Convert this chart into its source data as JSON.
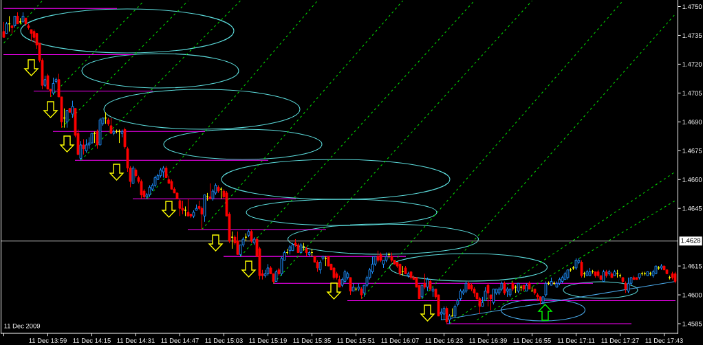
{
  "chart_data": {
    "type": "candlestick",
    "x": [
      "2009-12-11T13:43",
      "2009-12-11T13:44",
      "2009-12-11T13:45",
      "2009-12-11T13:46",
      "2009-12-11T13:47",
      "2009-12-11T13:48",
      "2009-12-11T13:49",
      "2009-12-11T13:50",
      "2009-12-11T13:51",
      "2009-12-11T13:52",
      "2009-12-11T13:53",
      "2009-12-11T13:54",
      "2009-12-11T13:55",
      "2009-12-11T13:56",
      "2009-12-11T13:57",
      "2009-12-11T13:58",
      "2009-12-11T13:59",
      "2009-12-11T14:00",
      "2009-12-11T14:01",
      "2009-12-11T14:02",
      "2009-12-11T14:03",
      "2009-12-11T14:04",
      "2009-12-11T14:05",
      "2009-12-11T14:06",
      "2009-12-11T14:07",
      "2009-12-11T14:08",
      "2009-12-11T14:09",
      "2009-12-11T14:10",
      "2009-12-11T14:11",
      "2009-12-11T14:12",
      "2009-12-11T14:13",
      "2009-12-11T14:14",
      "2009-12-11T14:15",
      "2009-12-11T14:16",
      "2009-12-11T14:17",
      "2009-12-11T14:18",
      "2009-12-11T14:19",
      "2009-12-11T14:20",
      "2009-12-11T14:21",
      "2009-12-11T14:22",
      "2009-12-11T14:23",
      "2009-12-11T14:24",
      "2009-12-11T14:25",
      "2009-12-11T14:26",
      "2009-12-11T14:27",
      "2009-12-11T14:28",
      "2009-12-11T14:29",
      "2009-12-11T14:30",
      "2009-12-11T14:31",
      "2009-12-11T14:32",
      "2009-12-11T14:33",
      "2009-12-11T14:34",
      "2009-12-11T14:35",
      "2009-12-11T14:36",
      "2009-12-11T14:37",
      "2009-12-11T14:38",
      "2009-12-11T14:39",
      "2009-12-11T14:40",
      "2009-12-11T14:41",
      "2009-12-11T14:42",
      "2009-12-11T14:43",
      "2009-12-11T14:44",
      "2009-12-11T14:45",
      "2009-12-11T14:46",
      "2009-12-11T14:47",
      "2009-12-11T14:48",
      "2009-12-11T14:49",
      "2009-12-11T14:50",
      "2009-12-11T14:51",
      "2009-12-11T14:52",
      "2009-12-11T14:53",
      "2009-12-11T14:54",
      "2009-12-11T14:55",
      "2009-12-11T14:56",
      "2009-12-11T14:57",
      "2009-12-11T14:58",
      "2009-12-11T14:59",
      "2009-12-11T15:00",
      "2009-12-11T15:01",
      "2009-12-11T15:02",
      "2009-12-11T15:03",
      "2009-12-11T15:04",
      "2009-12-11T15:05",
      "2009-12-11T15:06",
      "2009-12-11T15:07",
      "2009-12-11T15:08",
      "2009-12-11T15:09",
      "2009-12-11T15:10",
      "2009-12-11T15:11",
      "2009-12-11T15:12",
      "2009-12-11T15:13",
      "2009-12-11T15:14",
      "2009-12-11T15:15",
      "2009-12-11T15:16",
      "2009-12-11T15:17",
      "2009-12-11T15:18",
      "2009-12-11T15:19",
      "2009-12-11T15:20",
      "2009-12-11T15:21",
      "2009-12-11T15:22",
      "2009-12-11T15:23",
      "2009-12-11T15:24",
      "2009-12-11T15:25",
      "2009-12-11T15:26",
      "2009-12-11T15:27",
      "2009-12-11T15:28",
      "2009-12-11T15:29",
      "2009-12-11T15:30",
      "2009-12-11T15:31",
      "2009-12-11T15:32",
      "2009-12-11T15:33",
      "2009-12-11T15:34",
      "2009-12-11T15:35",
      "2009-12-11T15:36",
      "2009-12-11T15:37",
      "2009-12-11T15:38",
      "2009-12-11T15:39",
      "2009-12-11T15:40",
      "2009-12-11T15:41",
      "2009-12-11T15:42",
      "2009-12-11T15:43",
      "2009-12-11T15:44",
      "2009-12-11T15:45",
      "2009-12-11T15:46",
      "2009-12-11T15:47",
      "2009-12-11T15:48",
      "2009-12-11T15:49",
      "2009-12-11T15:50",
      "2009-12-11T15:51",
      "2009-12-11T15:52",
      "2009-12-11T15:53",
      "2009-12-11T15:54",
      "2009-12-11T15:55",
      "2009-12-11T15:56",
      "2009-12-11T15:57",
      "2009-12-11T15:58",
      "2009-12-11T15:59",
      "2009-12-11T16:00",
      "2009-12-11T16:01",
      "2009-12-11T16:02",
      "2009-12-11T16:03",
      "2009-12-11T16:04",
      "2009-12-11T16:05",
      "2009-12-11T16:06",
      "2009-12-11T16:07",
      "2009-12-11T16:08",
      "2009-12-11T16:09",
      "2009-12-11T16:10",
      "2009-12-11T16:11",
      "2009-12-11T16:12",
      "2009-12-11T16:13",
      "2009-12-11T16:14",
      "2009-12-11T16:15",
      "2009-12-11T16:16",
      "2009-12-11T16:17",
      "2009-12-11T16:18",
      "2009-12-11T16:19",
      "2009-12-11T16:20",
      "2009-12-11T16:21",
      "2009-12-11T16:22",
      "2009-12-11T16:23",
      "2009-12-11T16:24",
      "2009-12-11T16:25",
      "2009-12-11T16:26",
      "2009-12-11T16:27",
      "2009-12-11T16:28",
      "2009-12-11T16:29",
      "2009-12-11T16:30",
      "2009-12-11T16:31",
      "2009-12-11T16:32",
      "2009-12-11T16:33",
      "2009-12-11T16:34",
      "2009-12-11T16:35",
      "2009-12-11T16:36",
      "2009-12-11T16:37",
      "2009-12-11T16:38",
      "2009-12-11T16:39",
      "2009-12-11T16:40",
      "2009-12-11T16:41",
      "2009-12-11T16:42",
      "2009-12-11T16:43",
      "2009-12-11T16:44",
      "2009-12-11T16:45",
      "2009-12-11T16:46",
      "2009-12-11T16:47",
      "2009-12-11T16:48",
      "2009-12-11T16:49",
      "2009-12-11T16:50",
      "2009-12-11T16:51",
      "2009-12-11T16:52",
      "2009-12-11T16:53",
      "2009-12-11T16:54",
      "2009-12-11T16:55",
      "2009-12-11T16:56",
      "2009-12-11T16:57",
      "2009-12-11T16:58",
      "2009-12-11T16:59",
      "2009-12-11T17:00",
      "2009-12-11T17:01",
      "2009-12-11T17:02",
      "2009-12-11T17:03",
      "2009-12-11T17:04",
      "2009-12-11T17:05",
      "2009-12-11T17:06",
      "2009-12-11T17:07",
      "2009-12-11T17:08",
      "2009-12-11T17:09",
      "2009-12-11T17:10",
      "2009-12-11T17:11",
      "2009-12-11T17:12",
      "2009-12-11T17:13",
      "2009-12-11T17:14",
      "2009-12-11T17:15",
      "2009-12-11T17:16",
      "2009-12-11T17:17",
      "2009-12-11T17:18",
      "2009-12-11T17:19",
      "2009-12-11T17:20",
      "2009-12-11T17:21",
      "2009-12-11T17:22",
      "2009-12-11T17:23",
      "2009-12-11T17:24",
      "2009-12-11T17:25",
      "2009-12-11T17:26",
      "2009-12-11T17:27",
      "2009-12-11T17:28",
      "2009-12-11T17:29",
      "2009-12-11T17:30",
      "2009-12-11T17:31",
      "2009-12-11T17:32",
      "2009-12-11T17:33",
      "2009-12-11T17:34",
      "2009-12-11T17:35",
      "2009-12-11T17:36",
      "2009-12-11T17:37",
      "2009-12-11T17:38",
      "2009-12-11T17:39",
      "2009-12-11T17:40",
      "2009-12-11T17:41",
      "2009-12-11T17:42",
      "2009-12-11T17:43",
      "2009-12-11T17:44",
      "2009-12-11T17:45",
      "2009-12-11T17:46",
      "2009-12-11T17:47"
    ],
    "ohlc": [
      [
        1.4737,
        1.4742,
        1.4734,
        1.4734
      ],
      [
        1.4736,
        1.4742,
        1.4736,
        1.4741
      ],
      [
        1.4741,
        1.4745,
        1.4737,
        1.4741
      ],
      [
        1.474,
        1.474,
        1.4736,
        1.4739
      ],
      [
        1.474,
        1.4745,
        1.4739,
        1.4745
      ],
      [
        1.4745,
        1.4747,
        1.4741,
        1.4741
      ],
      [
        1.4742,
        1.4744,
        1.4741,
        1.4742
      ],
      [
        1.4742,
        1.4747,
        1.4742,
        1.4745
      ],
      [
        1.4744,
        1.4744,
        1.474,
        1.4741
      ],
      [
        1.474,
        1.4741,
        1.4738,
        1.4739
      ],
      [
        1.4738,
        1.4738,
        1.4732,
        1.4736
      ],
      [
        1.4737,
        1.4738,
        1.4731,
        1.4734
      ],
      [
        1.4736,
        1.4736,
        1.4728,
        1.473
      ],
      [
        1.4731,
        1.4731,
        1.4721,
        1.4722
      ],
      [
        1.4722,
        1.4723,
        1.4707,
        1.4709
      ],
      [
        1.4709,
        1.4714,
        1.4708,
        1.4712
      ],
      [
        1.4714,
        1.4715,
        1.4707,
        1.4707
      ],
      [
        1.4707,
        1.4707,
        1.4703,
        1.4706
      ],
      [
        1.4705,
        1.4713,
        1.4704,
        1.471
      ],
      [
        1.4711,
        1.4713,
        1.471,
        1.4712
      ],
      [
        1.4712,
        1.4715,
        1.4703,
        1.4703
      ],
      [
        1.4703,
        1.4703,
        1.4687,
        1.469
      ],
      [
        1.4692,
        1.4697,
        1.4687,
        1.4692
      ],
      [
        1.469,
        1.4696,
        1.4687,
        1.4696
      ],
      [
        1.4697,
        1.4697,
        1.4695,
        1.4695
      ],
      [
        1.4694,
        1.4701,
        1.4692,
        1.4698
      ],
      [
        1.4697,
        1.4697,
        1.4682,
        1.4683
      ],
      [
        1.4684,
        1.4686,
        1.4673,
        1.4673
      ],
      [
        1.4671,
        1.468,
        1.467,
        1.4678
      ],
      [
        1.4678,
        1.4681,
        1.4673,
        1.4676
      ],
      [
        1.4675,
        1.4681,
        1.4674,
        1.4678
      ],
      [
        1.4678,
        1.4682,
        1.4676,
        1.4679
      ],
      [
        1.4679,
        1.4684,
        1.4679,
        1.4684
      ],
      [
        1.4684,
        1.4685,
        1.4679,
        1.4684
      ],
      [
        1.4685,
        1.4686,
        1.4676,
        1.4678
      ],
      [
        1.4678,
        1.4692,
        1.4678,
        1.4691
      ],
      [
        1.4689,
        1.4692,
        1.4688,
        1.4692
      ],
      [
        1.4692,
        1.4695,
        1.4689,
        1.4692
      ],
      [
        1.4691,
        1.4692,
        1.4688,
        1.4689
      ],
      [
        1.4688,
        1.4692,
        1.4684,
        1.4684
      ],
      [
        1.4684,
        1.4686,
        1.4683,
        1.4685
      ],
      [
        1.4685,
        1.4686,
        1.4684,
        1.4685
      ],
      [
        1.4685,
        1.4686,
        1.4679,
        1.4685
      ],
      [
        1.4684,
        1.4686,
        1.4682,
        1.4685
      ],
      [
        1.4686,
        1.4687,
        1.4676,
        1.4677
      ],
      [
        1.4676,
        1.4677,
        1.4664,
        1.4666
      ],
      [
        1.4666,
        1.4667,
        1.4656,
        1.4659
      ],
      [
        1.4658,
        1.4667,
        1.4658,
        1.4666
      ],
      [
        1.4665,
        1.4666,
        1.4661,
        1.4662
      ],
      [
        1.4661,
        1.4662,
        1.4658,
        1.4659
      ],
      [
        1.4659,
        1.466,
        1.465,
        1.4652
      ],
      [
        1.4654,
        1.4655,
        1.465,
        1.4651
      ],
      [
        1.4651,
        1.4653,
        1.465,
        1.4652
      ],
      [
        1.4652,
        1.4657,
        1.4651,
        1.4656
      ],
      [
        1.4655,
        1.4658,
        1.4654,
        1.4657
      ],
      [
        1.4657,
        1.4662,
        1.4656,
        1.4661
      ],
      [
        1.466,
        1.4663,
        1.466,
        1.4662
      ],
      [
        1.4662,
        1.4666,
        1.4661,
        1.4665
      ],
      [
        1.4664,
        1.4667,
        1.4661,
        1.4666
      ],
      [
        1.4666,
        1.4667,
        1.4661,
        1.4661
      ],
      [
        1.466,
        1.4662,
        1.4658,
        1.4658
      ],
      [
        1.4659,
        1.466,
        1.4655,
        1.4655
      ],
      [
        1.4655,
        1.4656,
        1.4653,
        1.4653
      ],
      [
        1.4653,
        1.4653,
        1.465,
        1.465
      ],
      [
        1.4649,
        1.465,
        1.4641,
        1.4645
      ],
      [
        1.4645,
        1.4649,
        1.4642,
        1.4644
      ],
      [
        1.4644,
        1.4646,
        1.4641,
        1.4644
      ],
      [
        1.4643,
        1.465,
        1.4641,
        1.4641
      ],
      [
        1.4642,
        1.4642,
        1.464,
        1.4641
      ],
      [
        1.4641,
        1.4644,
        1.464,
        1.4643
      ],
      [
        1.4644,
        1.4647,
        1.4644,
        1.4645
      ],
      [
        1.4646,
        1.4649,
        1.4644,
        1.4645
      ],
      [
        1.4645,
        1.4646,
        1.4634,
        1.4642
      ],
      [
        1.4641,
        1.4652,
        1.4638,
        1.4652
      ],
      [
        1.4651,
        1.4653,
        1.4649,
        1.4651
      ],
      [
        1.4651,
        1.4658,
        1.465,
        1.465
      ],
      [
        1.465,
        1.4655,
        1.4649,
        1.4654
      ],
      [
        1.4653,
        1.4658,
        1.4652,
        1.4657
      ],
      [
        1.4656,
        1.4657,
        1.4653,
        1.4654
      ],
      [
        1.4655,
        1.4656,
        1.465,
        1.4655
      ],
      [
        1.4654,
        1.4655,
        1.465,
        1.4651
      ],
      [
        1.4653,
        1.4654,
        1.4641,
        1.4641
      ],
      [
        1.4642,
        1.4643,
        1.4627,
        1.4628
      ],
      [
        1.463,
        1.4633,
        1.4624,
        1.463
      ],
      [
        1.463,
        1.4631,
        1.4626,
        1.4627
      ],
      [
        1.4628,
        1.4633,
        1.4621,
        1.4621
      ],
      [
        1.4621,
        1.4626,
        1.462,
        1.4626
      ],
      [
        1.4626,
        1.463,
        1.4625,
        1.4629
      ],
      [
        1.463,
        1.4632,
        1.4628,
        1.463
      ],
      [
        1.4631,
        1.4634,
        1.463,
        1.4633
      ],
      [
        1.4633,
        1.4634,
        1.4627,
        1.4628
      ],
      [
        1.4627,
        1.463,
        1.4626,
        1.4629
      ],
      [
        1.4629,
        1.463,
        1.462,
        1.462
      ],
      [
        1.4624,
        1.4625,
        1.4608,
        1.461
      ],
      [
        1.4611,
        1.4613,
        1.4608,
        1.461
      ],
      [
        1.461,
        1.4613,
        1.4609,
        1.4611
      ],
      [
        1.4611,
        1.4616,
        1.461,
        1.4614
      ],
      [
        1.4614,
        1.4615,
        1.4611,
        1.4611
      ],
      [
        1.4611,
        1.4611,
        1.4606,
        1.4607
      ],
      [
        1.4607,
        1.4613,
        1.4607,
        1.4612
      ],
      [
        1.4613,
        1.4614,
        1.461,
        1.4611
      ],
      [
        1.4611,
        1.462,
        1.461,
        1.4619
      ],
      [
        1.4618,
        1.4623,
        1.4618,
        1.4622
      ],
      [
        1.4622,
        1.4624,
        1.4621,
        1.4622
      ],
      [
        1.4623,
        1.4626,
        1.4621,
        1.4625
      ],
      [
        1.4623,
        1.4627,
        1.4623,
        1.4626
      ],
      [
        1.4627,
        1.4629,
        1.4625,
        1.4626
      ],
      [
        1.4626,
        1.4627,
        1.4622,
        1.4622
      ],
      [
        1.4622,
        1.4627,
        1.4622,
        1.4626
      ],
      [
        1.4625,
        1.4627,
        1.4623,
        1.4625
      ],
      [
        1.4624,
        1.4625,
        1.462,
        1.4622
      ],
      [
        1.4621,
        1.4623,
        1.462,
        1.4622
      ],
      [
        1.4622,
        1.4624,
        1.462,
        1.4622
      ],
      [
        1.462,
        1.462,
        1.4617,
        1.4617
      ],
      [
        1.4617,
        1.4618,
        1.4612,
        1.4614
      ],
      [
        1.4613,
        1.4618,
        1.4611,
        1.4617
      ],
      [
        1.4619,
        1.462,
        1.4618,
        1.462
      ],
      [
        1.4619,
        1.462,
        1.4615,
        1.4619
      ],
      [
        1.462,
        1.462,
        1.4615,
        1.4615
      ],
      [
        1.4616,
        1.4616,
        1.4613,
        1.4613
      ],
      [
        1.4614,
        1.4614,
        1.4608,
        1.4609
      ],
      [
        1.4611,
        1.4612,
        1.4608,
        1.4609
      ],
      [
        1.4608,
        1.461,
        1.4604,
        1.4604
      ],
      [
        1.4605,
        1.4609,
        1.4604,
        1.4608
      ],
      [
        1.4607,
        1.4613,
        1.4606,
        1.4612
      ],
      [
        1.4609,
        1.4612,
        1.4608,
        1.4611
      ],
      [
        1.4609,
        1.4609,
        1.46,
        1.4602
      ],
      [
        1.4602,
        1.4606,
        1.4602,
        1.4604
      ],
      [
        1.4603,
        1.4604,
        1.4602,
        1.4603
      ],
      [
        1.4603,
        1.4606,
        1.4602,
        1.4604
      ],
      [
        1.4603,
        1.4604,
        1.4598,
        1.46
      ],
      [
        1.4601,
        1.4605,
        1.4599,
        1.4605
      ],
      [
        1.4605,
        1.461,
        1.4604,
        1.4609
      ],
      [
        1.4609,
        1.4614,
        1.4608,
        1.4613
      ],
      [
        1.4612,
        1.462,
        1.4611,
        1.4616
      ],
      [
        1.4616,
        1.462,
        1.4615,
        1.462
      ],
      [
        1.462,
        1.4623,
        1.4617,
        1.4618
      ],
      [
        1.4621,
        1.4622,
        1.4617,
        1.4618
      ],
      [
        1.4616,
        1.4618,
        1.4614,
        1.4618
      ],
      [
        1.4618,
        1.4622,
        1.4617,
        1.462
      ],
      [
        1.4621,
        1.4622,
        1.4619,
        1.4621
      ],
      [
        1.462,
        1.4622,
        1.4617,
        1.4618
      ],
      [
        1.4618,
        1.4618,
        1.4616,
        1.4616
      ],
      [
        1.4617,
        1.4617,
        1.4614,
        1.4615
      ],
      [
        1.4616,
        1.4616,
        1.461,
        1.4611
      ],
      [
        1.4612,
        1.4615,
        1.461,
        1.4612
      ],
      [
        1.4614,
        1.4615,
        1.4611,
        1.4611
      ],
      [
        1.461,
        1.4612,
        1.4609,
        1.4611
      ],
      [
        1.4612,
        1.4612,
        1.4608,
        1.4609
      ],
      [
        1.4609,
        1.461,
        1.4608,
        1.4608
      ],
      [
        1.4609,
        1.4609,
        1.4604,
        1.4604
      ],
      [
        1.4605,
        1.4605,
        1.4598,
        1.4598
      ],
      [
        1.4599,
        1.4605,
        1.4598,
        1.4605
      ],
      [
        1.4606,
        1.4611,
        1.4603,
        1.4604
      ],
      [
        1.4604,
        1.4609,
        1.4602,
        1.4608
      ],
      [
        1.4607,
        1.4608,
        1.4602,
        1.4603
      ],
      [
        1.4602,
        1.4604,
        1.4599,
        1.4603
      ],
      [
        1.4603,
        1.4603,
        1.4598,
        1.4599
      ],
      [
        1.46,
        1.46,
        1.4589,
        1.4589
      ],
      [
        1.459,
        1.4593,
        1.4587,
        1.4591
      ],
      [
        1.459,
        1.4594,
        1.4587,
        1.4593
      ],
      [
        1.4593,
        1.4594,
        1.4585,
        1.4586
      ],
      [
        1.4587,
        1.459,
        1.4585,
        1.4589
      ],
      [
        1.4589,
        1.4593,
        1.4589,
        1.4589
      ],
      [
        1.4589,
        1.4595,
        1.4588,
        1.4594
      ],
      [
        1.4595,
        1.4598,
        1.4594,
        1.4597
      ],
      [
        1.4598,
        1.4603,
        1.4597,
        1.4602
      ],
      [
        1.4601,
        1.4603,
        1.46,
        1.4602
      ],
      [
        1.4602,
        1.4607,
        1.4601,
        1.4606
      ],
      [
        1.4606,
        1.4607,
        1.4603,
        1.4603
      ],
      [
        1.4605,
        1.4606,
        1.4602,
        1.4603
      ],
      [
        1.4603,
        1.4604,
        1.4599,
        1.4601
      ],
      [
        1.4601,
        1.4601,
        1.4597,
        1.4598
      ],
      [
        1.4598,
        1.4599,
        1.459,
        1.4594
      ],
      [
        1.4594,
        1.4599,
        1.4594,
        1.4596
      ],
      [
        1.4597,
        1.4604,
        1.4597,
        1.4602
      ],
      [
        1.4605,
        1.4606,
        1.4594,
        1.4601
      ],
      [
        1.46,
        1.46,
        1.4592,
        1.4598
      ],
      [
        1.4596,
        1.4603,
        1.4595,
        1.4603
      ],
      [
        1.4601,
        1.4603,
        1.46,
        1.4603
      ],
      [
        1.4601,
        1.4604,
        1.46,
        1.4603
      ],
      [
        1.4603,
        1.4607,
        1.4602,
        1.4606
      ],
      [
        1.4606,
        1.4607,
        1.46,
        1.4601
      ],
      [
        1.4602,
        1.4604,
        1.4599,
        1.4603
      ],
      [
        1.46,
        1.4603,
        1.4599,
        1.4603
      ],
      [
        1.4606,
        1.4607,
        1.4602,
        1.4603
      ],
      [
        1.4604,
        1.4605,
        1.4601,
        1.4604
      ],
      [
        1.4602,
        1.4606,
        1.4601,
        1.4606
      ],
      [
        1.4604,
        1.4605,
        1.4602,
        1.4604
      ],
      [
        1.4605,
        1.4605,
        1.4602,
        1.4603
      ],
      [
        1.4602,
        1.4606,
        1.4602,
        1.4605
      ],
      [
        1.4606,
        1.4607,
        1.4603,
        1.4603
      ],
      [
        1.4602,
        1.4604,
        1.4602,
        1.4602
      ],
      [
        1.4603,
        1.4603,
        1.46,
        1.4601
      ],
      [
        1.46,
        1.4601,
        1.4597,
        1.4599
      ],
      [
        1.4599,
        1.4599,
        1.4595,
        1.4597
      ],
      [
        1.4596,
        1.4599,
        1.4595,
        1.4599
      ],
      [
        1.46,
        1.4607,
        1.4599,
        1.4606
      ],
      [
        1.4606,
        1.4607,
        1.4605,
        1.4606
      ],
      [
        1.4605,
        1.4609,
        1.4605,
        1.4607
      ],
      [
        1.4606,
        1.4607,
        1.4605,
        1.4606
      ],
      [
        1.4604,
        1.4607,
        1.4604,
        1.4606
      ],
      [
        1.4606,
        1.4609,
        1.4605,
        1.4608
      ],
      [
        1.4607,
        1.461,
        1.4606,
        1.4609
      ],
      [
        1.4608,
        1.4612,
        1.4608,
        1.4611
      ],
      [
        1.4609,
        1.4613,
        1.4608,
        1.4613
      ],
      [
        1.4613,
        1.4614,
        1.4612,
        1.4613
      ],
      [
        1.4614,
        1.4615,
        1.4613,
        1.4614
      ],
      [
        1.4614,
        1.4619,
        1.4613,
        1.4618
      ],
      [
        1.4617,
        1.4619,
        1.4616,
        1.4618
      ],
      [
        1.4617,
        1.4618,
        1.4609,
        1.461
      ],
      [
        1.4611,
        1.4612,
        1.4609,
        1.4611
      ],
      [
        1.461,
        1.4613,
        1.461,
        1.4612
      ],
      [
        1.461,
        1.4614,
        1.461,
        1.4612
      ],
      [
        1.4612,
        1.4613,
        1.4611,
        1.4612
      ],
      [
        1.4612,
        1.4612,
        1.4609,
        1.461
      ],
      [
        1.4612,
        1.4613,
        1.4609,
        1.461
      ],
      [
        1.461,
        1.461,
        1.4608,
        1.4608
      ],
      [
        1.4607,
        1.4613,
        1.4607,
        1.4612
      ],
      [
        1.4612,
        1.4613,
        1.4609,
        1.461
      ],
      [
        1.4611,
        1.4613,
        1.461,
        1.4612
      ],
      [
        1.4611,
        1.4612,
        1.4609,
        1.4609
      ],
      [
        1.461,
        1.4613,
        1.461,
        1.4612
      ],
      [
        1.4611,
        1.4613,
        1.4609,
        1.4611
      ],
      [
        1.461,
        1.4611,
        1.4609,
        1.461
      ],
      [
        1.4609,
        1.4609,
        1.4606,
        1.4607
      ],
      [
        1.4606,
        1.4607,
        1.4601,
        1.4603
      ],
      [
        1.4602,
        1.4609,
        1.4601,
        1.4606
      ],
      [
        1.4606,
        1.4609,
        1.4605,
        1.4609
      ],
      [
        1.4609,
        1.461,
        1.4608,
        1.4608
      ],
      [
        1.4609,
        1.4609,
        1.4608,
        1.4608
      ],
      [
        1.4609,
        1.4611,
        1.4608,
        1.4611
      ],
      [
        1.4611,
        1.4612,
        1.461,
        1.4611
      ],
      [
        1.4611,
        1.4612,
        1.461,
        1.4611
      ],
      [
        1.461,
        1.4612,
        1.461,
        1.4612
      ],
      [
        1.4611,
        1.4612,
        1.461,
        1.4611
      ],
      [
        1.461,
        1.4613,
        1.4609,
        1.4612
      ],
      [
        1.4611,
        1.4615,
        1.4611,
        1.4615
      ],
      [
        1.4614,
        1.4615,
        1.4613,
        1.4614
      ],
      [
        1.4614,
        1.4616,
        1.4613,
        1.4615
      ],
      [
        1.4615,
        1.4615,
        1.4613,
        1.4613
      ],
      [
        1.4613,
        1.4613,
        1.4611,
        1.4611
      ],
      [
        1.4609,
        1.461,
        1.4608,
        1.4609
      ],
      [
        1.4611,
        1.4612,
        1.4608,
        1.4609
      ],
      [
        1.4611,
        1.4612,
        1.4606,
        1.4607
      ]
    ],
    "colors": [
      "#ff0000",
      "#1e90ff",
      "#ffff00",
      "#ff0000",
      "#1e90ff",
      "#ff0000",
      "#ffff00",
      "#1e90ff",
      "#ff0000",
      "#ff0000",
      "#ff0000",
      "#ff0000",
      "#ff0000",
      "#ff0000",
      "#ff0000",
      "#1e90ff",
      "#ff0000",
      "#ff0000",
      "#1e90ff",
      "#1e90ff",
      "#ff0000",
      "#ff0000",
      "#ffff00",
      "#1e90ff",
      "#ff0000",
      "#1e90ff",
      "#ff0000",
      "#ff0000",
      "#1e90ff",
      "#ff0000",
      "#1e90ff",
      "#1e90ff",
      "#1e90ff",
      "#ffff00",
      "#ff0000",
      "#1e90ff",
      "#1e90ff",
      "#ffff00",
      "#ff0000",
      "#ff0000",
      "#1e90ff",
      "#ffff00",
      "#ffff00",
      "#1e90ff",
      "#ff0000",
      "#ff0000",
      "#ff0000",
      "#1e90ff",
      "#ff0000",
      "#ff0000",
      "#ff0000",
      "#ff0000",
      "#1e90ff",
      "#1e90ff",
      "#1e90ff",
      "#1e90ff",
      "#1e90ff",
      "#1e90ff",
      "#1e90ff",
      "#ff0000",
      "#ff0000",
      "#ff0000",
      "#ff0000",
      "#ff0000",
      "#ff0000",
      "#ff0000",
      "#ffff00",
      "#ff0000",
      "#ff0000",
      "#1e90ff",
      "#1e90ff",
      "#ff0000",
      "#ff0000",
      "#1e90ff",
      "#ffff00",
      "#ff0000",
      "#1e90ff",
      "#1e90ff",
      "#ff0000",
      "#ffff00",
      "#ff0000",
      "#ff0000",
      "#ff0000",
      "#ffff00",
      "#ff0000",
      "#ff0000",
      "#1e90ff",
      "#1e90ff",
      "#ffff00",
      "#1e90ff",
      "#ff0000",
      "#1e90ff",
      "#ff0000",
      "#ff0000",
      "#ff0000",
      "#1e90ff",
      "#1e90ff",
      "#ff0000",
      "#ff0000",
      "#1e90ff",
      "#ff0000",
      "#1e90ff",
      "#1e90ff",
      "#ffff00",
      "#1e90ff",
      "#1e90ff",
      "#ff0000",
      "#ff0000",
      "#1e90ff",
      "#ffff00",
      "#ff0000",
      "#1e90ff",
      "#ffff00",
      "#ff0000",
      "#ff0000",
      "#1e90ff",
      "#1e90ff",
      "#ffff00",
      "#ff0000",
      "#ff0000",
      "#ff0000",
      "#ff0000",
      "#ff0000",
      "#1e90ff",
      "#1e90ff",
      "#1e90ff",
      "#ff0000",
      "#1e90ff",
      "#ffff00",
      "#1e90ff",
      "#ff0000",
      "#1e90ff",
      "#1e90ff",
      "#1e90ff",
      "#1e90ff",
      "#1e90ff",
      "#ff0000",
      "#ff0000",
      "#1e90ff",
      "#1e90ff",
      "#ffff00",
      "#ff0000",
      "#ff0000",
      "#ff0000",
      "#ff0000",
      "#ffff00",
      "#ff0000",
      "#1e90ff",
      "#ff0000",
      "#ff0000",
      "#ff0000",
      "#ff0000",
      "#1e90ff",
      "#ff0000",
      "#1e90ff",
      "#ff0000",
      "#1e90ff",
      "#ff0000",
      "#ff0000",
      "#1e90ff",
      "#1e90ff",
      "#ff0000",
      "#1e90ff",
      "#ffff00",
      "#1e90ff",
      "#1e90ff",
      "#1e90ff",
      "#1e90ff",
      "#1e90ff",
      "#ff0000",
      "#ff0000",
      "#ff0000",
      "#ff0000",
      "#ff0000",
      "#1e90ff",
      "#1e90ff",
      "#ff0000",
      "#ff0000",
      "#1e90ff",
      "#1e90ff",
      "#1e90ff",
      "#1e90ff",
      "#ff0000",
      "#1e90ff",
      "#1e90ff",
      "#ff0000",
      "#ffff00",
      "#1e90ff",
      "#ffff00",
      "#ff0000",
      "#1e90ff",
      "#ff0000",
      "#ffff00",
      "#ff0000",
      "#ff0000",
      "#ff0000",
      "#1e90ff",
      "#1e90ff",
      "#ffff00",
      "#1e90ff",
      "#ffff00",
      "#1e90ff",
      "#1e90ff",
      "#1e90ff",
      "#1e90ff",
      "#1e90ff",
      "#ffff00",
      "#ffff00",
      "#1e90ff",
      "#1e90ff",
      "#ff0000",
      "#ffff00",
      "#1e90ff",
      "#1e90ff",
      "#ffff00",
      "#ff0000",
      "#ff0000",
      "#ff0000",
      "#1e90ff",
      "#ff0000",
      "#1e90ff",
      "#ff0000",
      "#1e90ff",
      "#ffff00",
      "#ffff00",
      "#ff0000",
      "#ff0000",
      "#1e90ff",
      "#1e90ff",
      "#ff0000",
      "#ff0000",
      "#1e90ff",
      "#ffff00",
      "#ffff00",
      "#1e90ff",
      "#ffff00",
      "#1e90ff",
      "#1e90ff",
      "#ffff00",
      "#1e90ff",
      "#ff0000",
      "#ff0000",
      "#ffff00",
      "#ff0000",
      "#ff0000"
    ],
    "series": [
      {
        "type": "line",
        "color": "#ff00ff",
        "x": [
          "2009-12-11T13:43",
          "2009-12-11T14:24"
        ],
        "values": [
          1.4749,
          1.4749
        ]
      },
      {
        "type": "line",
        "color": "#ff00ff",
        "x": [
          "2009-12-11T13:43",
          "2009-12-11T14:30"
        ],
        "values": [
          1.4725,
          1.4725
        ]
      },
      {
        "type": "line",
        "color": "#ff00ff",
        "x": [
          "2009-12-11T13:54",
          "2009-12-11T14:37"
        ],
        "values": [
          1.4706,
          1.4706
        ]
      },
      {
        "type": "line",
        "color": "#ff00ff",
        "x": [
          "2009-12-11T14:01",
          "2009-12-11T14:56"
        ],
        "values": [
          1.4685,
          1.4685
        ]
      },
      {
        "type": "line",
        "color": "#ff00ff",
        "x": [
          "2009-12-11T14:09",
          "2009-12-11T15:19"
        ],
        "values": [
          1.467,
          1.467
        ]
      },
      {
        "type": "line",
        "color": "#ff00ff",
        "x": [
          "2009-12-11T14:30",
          "2009-12-11T15:29"
        ],
        "values": [
          1.465,
          1.465
        ]
      },
      {
        "type": "line",
        "color": "#ff00ff",
        "x": [
          "2009-12-11T14:50",
          "2009-12-11T15:40"
        ],
        "values": [
          1.4634,
          1.4634
        ]
      },
      {
        "type": "line",
        "color": "#ff00ff",
        "x": [
          "2009-12-11T15:03",
          "2009-12-11T16:09"
        ],
        "values": [
          1.462,
          1.462
        ]
      },
      {
        "type": "line",
        "color": "#ff00ff",
        "x": [
          "2009-12-11T15:21",
          "2009-12-11T17:17"
        ],
        "values": [
          1.4606,
          1.4606
        ]
      },
      {
        "type": "line",
        "color": "#ff00ff",
        "x": [
          "2009-12-11T15:48",
          "2009-12-11T17:47"
        ],
        "values": [
          1.4597,
          1.4597
        ]
      },
      {
        "type": "line",
        "color": "#ff00ff",
        "x": [
          "2009-12-11T16:24",
          "2009-12-11T17:31"
        ],
        "values": [
          1.4585,
          1.4585
        ]
      },
      {
        "type": "line",
        "color": "#00e000",
        "line_style": "dashed",
        "x": [
          "2009-12-11T13:43",
          "2009-12-11T13:57"
        ],
        "values": [
          1.4731,
          1.4753
        ]
      },
      {
        "type": "line",
        "color": "#00e000",
        "line_style": "dashed",
        "x": [
          "2009-12-11T14:00",
          "2009-12-11T14:34"
        ],
        "values": [
          1.4703,
          1.4753
        ]
      },
      {
        "type": "line",
        "color": "#00e000",
        "line_style": "dashed",
        "x": [
          "2009-12-11T14:04",
          "2009-12-11T14:50"
        ],
        "values": [
          1.4687,
          1.4753
        ]
      },
      {
        "type": "line",
        "color": "#00e000",
        "line_style": "dashed",
        "x": [
          "2009-12-11T14:11",
          "2009-12-11T15:09"
        ],
        "values": [
          1.467,
          1.4753
        ]
      },
      {
        "type": "line",
        "color": "#00e000",
        "line_style": "dashed",
        "x": [
          "2009-12-11T14:35",
          "2009-12-11T15:37"
        ],
        "values": [
          1.465,
          1.4753
        ]
      },
      {
        "type": "line",
        "color": "#00e000",
        "line_style": "dashed",
        "x": [
          "2009-12-11T14:55",
          "2009-12-11T16:08"
        ],
        "values": [
          1.4634,
          1.4753
        ]
      },
      {
        "type": "line",
        "color": "#00e000",
        "line_style": "dashed",
        "x": [
          "2009-12-11T15:09",
          "2009-12-11T16:34"
        ],
        "values": [
          1.462,
          1.4753
        ]
      },
      {
        "type": "line",
        "color": "#00e000",
        "line_style": "dashed",
        "x": [
          "2009-12-11T15:21",
          "2009-12-11T16:55"
        ],
        "values": [
          1.4606,
          1.4753
        ]
      },
      {
        "type": "line",
        "color": "#00e000",
        "line_style": "dashed",
        "x": [
          "2009-12-11T15:53",
          "2009-12-11T17:28"
        ],
        "values": [
          1.4598,
          1.4753
        ]
      },
      {
        "type": "line",
        "color": "#00e000",
        "line_style": "dashed",
        "x": [
          "2009-12-11T16:15",
          "2009-12-11T17:47"
        ],
        "values": [
          1.4598,
          1.4746
        ]
      },
      {
        "type": "line",
        "color": "#00e000",
        "line_style": "dashed",
        "x": [
          "2009-12-11T16:25",
          "2009-12-11T17:47"
        ],
        "values": [
          1.4585,
          1.4664
        ]
      },
      {
        "type": "line",
        "color": "#00e000",
        "line_style": "dashed",
        "x": [
          "2009-12-11T16:35",
          "2009-12-11T17:47"
        ],
        "values": [
          1.4587,
          1.4649
        ]
      },
      {
        "type": "line",
        "color": "#4aa8e8",
        "x": [
          "2009-12-11T16:22",
          "2009-12-11T17:47"
        ],
        "values": [
          1.4587,
          1.4607
        ]
      }
    ],
    "ref_lines": [
      {
        "axis": "y",
        "value": 1.4628,
        "label": "1.4628",
        "color": "#c0c0c0"
      }
    ],
    "annotations": [
      "11 Dec 2009"
    ],
    "xlim": [
      "2009-12-11T13:42",
      "2009-12-11T17:48"
    ],
    "xticks": [
      {
        "value": "2009-12-11T13:43",
        "label": null
      },
      {
        "value": "2009-12-11T13:59",
        "label": "11 Dec 13:59"
      },
      {
        "value": "2009-12-11T14:15",
        "label": "11 Dec 14:15"
      },
      {
        "value": "2009-12-11T14:31",
        "label": "11 Dec 14:31"
      },
      {
        "value": "2009-12-11T14:47",
        "label": "11 Dec 14:47"
      },
      {
        "value": "2009-12-11T15:03",
        "label": "11 Dec 15:03"
      },
      {
        "value": "2009-12-11T15:19",
        "label": "11 Dec 15:19"
      },
      {
        "value": "2009-12-11T15:35",
        "label": "11 Dec 15:35"
      },
      {
        "value": "2009-12-11T15:51",
        "label": "11 Dec 15:51"
      },
      {
        "value": "2009-12-11T16:07",
        "label": "11 Dec 16:07"
      },
      {
        "value": "2009-12-11T16:23",
        "label": "11 Dec 16:23"
      },
      {
        "value": "2009-12-11T16:39",
        "label": "11 Dec 16:39"
      },
      {
        "value": "2009-12-11T16:55",
        "label": "11 Dec 16:55"
      },
      {
        "value": "2009-12-11T17:11",
        "label": "11 Dec 17:11"
      },
      {
        "value": "2009-12-11T17:27",
        "label": "11 Dec 17:27"
      },
      {
        "value": "2009-12-11T17:43",
        "label": "11 Dec 17:43"
      }
    ],
    "ylim": [
      1.458,
      1.47534
    ],
    "yticks": [
      {
        "value": 1.475,
        "label": "1.4750"
      },
      1.4735,
      {
        "value": 1.472,
        "label": "1.4720"
      },
      1.4705,
      {
        "value": 1.469,
        "label": "1.4690"
      },
      1.4675,
      {
        "value": 1.466,
        "label": "1.4660"
      },
      1.4645,
      1.4615,
      {
        "value": 1.46,
        "label": "1.4600"
      },
      1.4585
    ]
  }
}
